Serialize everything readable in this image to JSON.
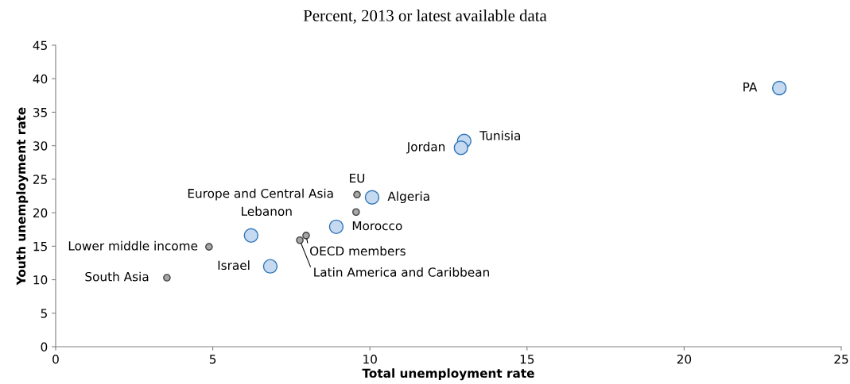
{
  "chart_data": {
    "type": "scatter",
    "title": "Percent, 2013 or latest available data",
    "xlabel": "Total unemployment rate",
    "ylabel": "Youth unemployment rate",
    "series": [
      {
        "color": "#c5d9f1",
        "x": [
          23.03,
          13.0,
          12.9,
          10.07,
          8.93,
          6.22,
          6.83
        ],
        "values": [
          38.6,
          30.7,
          29.7,
          22.3,
          17.9,
          16.6,
          12.0
        ]
      },
      {
        "color": "#a6a6a6",
        "x": [
          9.59,
          9.56,
          7.97,
          7.77,
          4.88,
          3.54
        ],
        "values": [
          22.7,
          20.1,
          16.6,
          15.9,
          14.9,
          10.3
        ]
      }
    ],
    "annotations": [
      {
        "text": "PA",
        "x": 23.03,
        "y": 38.6
      },
      {
        "text": "Tunisia",
        "x": 13.0,
        "y": 30.7
      },
      {
        "text": "Jordan",
        "x": 12.9,
        "y": 29.7
      },
      {
        "text": "Algeria",
        "x": 10.07,
        "y": 22.3
      },
      {
        "text": "Morocco",
        "x": 8.93,
        "y": 17.9
      },
      {
        "text": "Lebanon",
        "x": 6.22,
        "y": 16.6
      },
      {
        "text": "Israel",
        "x": 6.83,
        "y": 12.0
      },
      {
        "text": "EU",
        "x": 9.59,
        "y": 22.7
      },
      {
        "text": "Europe and Central Asia",
        "x": 9.56,
        "y": 20.1
      },
      {
        "text": "OECD members",
        "x": 7.97,
        "y": 16.6
      },
      {
        "text": "Latin America and Caribbean",
        "x": 7.77,
        "y": 15.9
      },
      {
        "text": "Lower middle income",
        "x": 4.88,
        "y": 14.9
      },
      {
        "text": "South Asia",
        "x": 3.54,
        "y": 10.3
      }
    ],
    "xlim": [
      0,
      25
    ],
    "xticks": [
      0,
      5,
      10,
      15,
      20,
      25
    ],
    "ylim": [
      0,
      45
    ],
    "yticks": [
      0,
      5,
      10,
      15,
      20,
      25,
      30,
      35,
      40,
      45
    ],
    "grid": false,
    "legend": false,
    "marker": "circle"
  }
}
